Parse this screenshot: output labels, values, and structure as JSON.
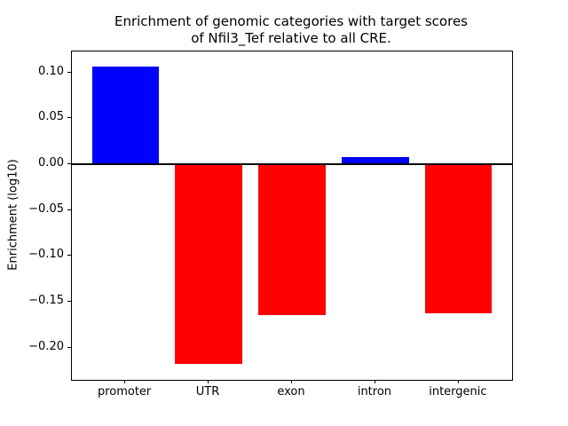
{
  "chart_data": {
    "type": "bar",
    "title": "Enrichment of genomic categories with target scores\nof Nfil3_Tef relative to all CRE.",
    "xlabel": "",
    "ylabel": "Enrichment (log10)",
    "categories": [
      "promoter",
      "UTR",
      "exon",
      "intron",
      "intergenic"
    ],
    "values": [
      0.107,
      -0.218,
      -0.164,
      0.008,
      -0.162
    ],
    "bar_colors": [
      "#0000ff",
      "#ff0000",
      "#ff0000",
      "#0000ff",
      "#ff0000"
    ],
    "positive_color": "#0000ff",
    "negative_color": "#ff0000",
    "yticks": [
      0.1,
      0.05,
      0.0,
      -0.05,
      -0.1,
      -0.15,
      -0.2
    ],
    "ytick_labels": [
      "0.10",
      "0.05",
      "0.00",
      "−0.05",
      "−0.10",
      "−0.15",
      "−0.20"
    ],
    "ylim": [
      -0.235,
      0.123
    ],
    "xlim": [
      -0.64,
      4.64
    ],
    "bar_width": 0.8,
    "grid": false,
    "legend": null,
    "zero_line": true
  }
}
